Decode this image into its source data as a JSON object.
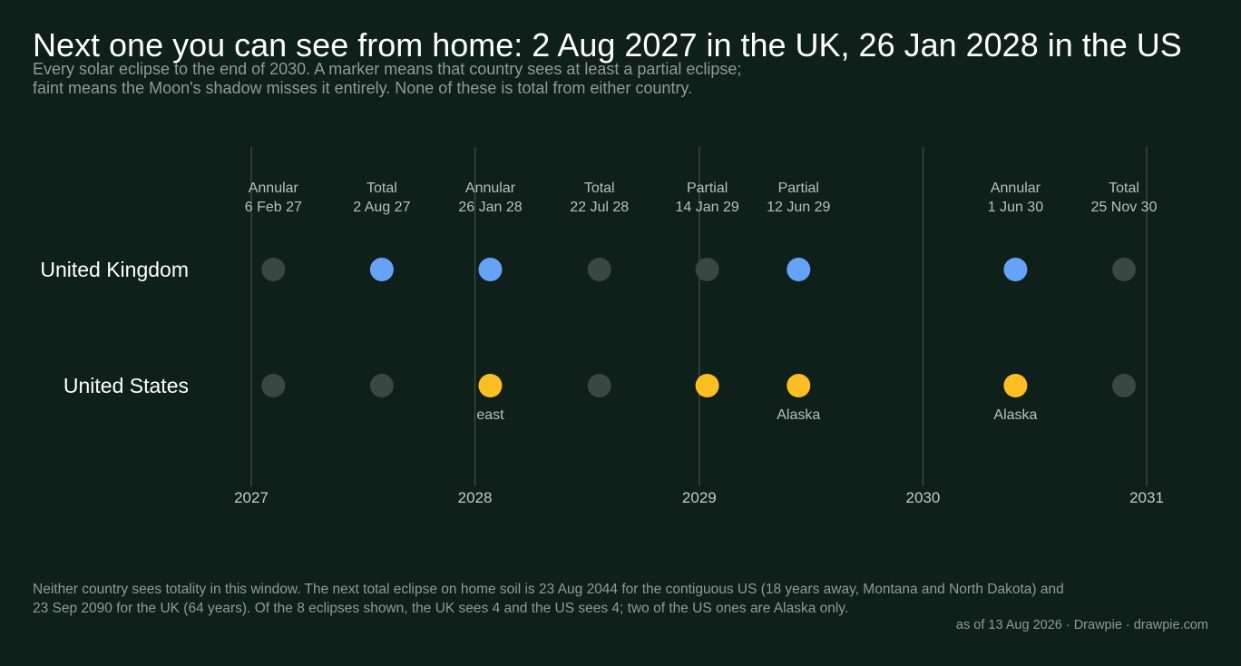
{
  "header": {
    "title": "Next one you can see from home: 2 Aug 2027 in the UK, 26 Jan 2028 in the US",
    "subtitle_line1": "Every solar eclipse to the end of 2030. A marker means that country sees at least a partial eclipse;",
    "subtitle_line2": "faint means the Moon's shadow misses it entirely. None of these is total from either country."
  },
  "footer": {
    "note_line1": "Neither country sees totality in this window. The next total eclipse on home soil is 23 Aug 2044 for the contiguous US (18 years away, Montana and North Dakota) and",
    "note_line2": "23 Sep 2090 for the UK (64 years). Of the 8 eclipses shown, the UK sees 4 and the US sees 4; two of the US ones are Alaska only.",
    "credit": "as of 13 Aug 2026  ·  Drawpie · drawpie.com"
  },
  "colors": {
    "background": "#0f1f1a",
    "uk": "#66a3f7",
    "us": "#fbbf24",
    "faint": "#3a4742",
    "gridline": "#3a4742",
    "label": "#b8c0bd",
    "axis_label": "#c3cbc8",
    "row_label": "#ffffff"
  },
  "chart_data": {
    "type": "scatter",
    "title": "Next one you can see from home: 2 Aug 2027 in the UK, 26 Jan 2028 in the US",
    "x_axis": {
      "type": "date",
      "range": [
        "2027-01-01",
        "2031-01-01"
      ],
      "ticks": [
        "2027",
        "2028",
        "2029",
        "2030",
        "2031"
      ],
      "tick_dates": [
        "2027-01-01",
        "2028-01-01",
        "2029-01-01",
        "2030-01-01",
        "2031-01-01"
      ]
    },
    "rows": [
      "United Kingdom",
      "United States"
    ],
    "grid": true,
    "legend": "none",
    "eclipses": [
      {
        "date": "2027-02-06",
        "type_label": "Annular",
        "date_label": "6 Feb 27",
        "uk": false,
        "us": false,
        "us_note": ""
      },
      {
        "date": "2027-08-02",
        "type_label": "Total",
        "date_label": "2 Aug 27",
        "uk": true,
        "us": false,
        "us_note": ""
      },
      {
        "date": "2028-01-26",
        "type_label": "Annular",
        "date_label": "26 Jan 28",
        "uk": true,
        "us": true,
        "us_note": "east"
      },
      {
        "date": "2028-07-22",
        "type_label": "Total",
        "date_label": "22 Jul 28",
        "uk": false,
        "us": false,
        "us_note": ""
      },
      {
        "date": "2029-01-14",
        "type_label": "Partial",
        "date_label": "14 Jan 29",
        "uk": false,
        "us": true,
        "us_note": ""
      },
      {
        "date": "2029-06-12",
        "type_label": "Partial",
        "date_label": "12 Jun 29",
        "uk": true,
        "us": true,
        "us_note": "Alaska"
      },
      {
        "date": "2030-06-01",
        "type_label": "Annular",
        "date_label": "1 Jun 30",
        "uk": true,
        "us": true,
        "us_note": "Alaska"
      },
      {
        "date": "2030-11-25",
        "type_label": "Total",
        "date_label": "25 Nov 30",
        "uk": false,
        "us": false,
        "us_note": ""
      }
    ]
  }
}
